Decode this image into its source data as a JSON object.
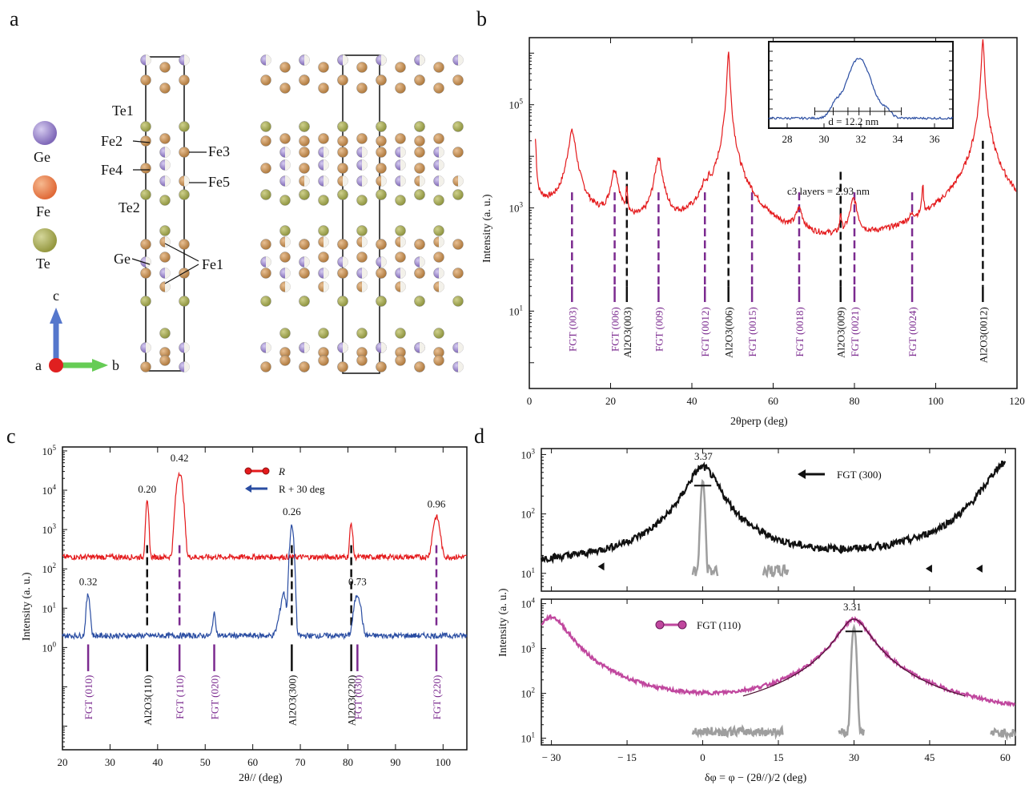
{
  "panel_letters": {
    "a": "a",
    "b": "b",
    "c": "c",
    "d": "d"
  },
  "panel_a": {
    "legend": [
      "Ge",
      "Fe",
      "Te"
    ],
    "legend_colors": {
      "Ge": "#8f79c8",
      "Fe": "#e9784a",
      "Te": "#a5a84e"
    },
    "site_labels": [
      "Te1",
      "Fe2",
      "Fe3",
      "Fe4",
      "Fe5",
      "Te2",
      "Ge",
      "Fe1"
    ],
    "axes": {
      "c": "c",
      "a": "a",
      "b": "b"
    }
  },
  "colors": {
    "red": "#e41a1c",
    "blue": "#2a4da2",
    "purple": "#7b2a8f",
    "black": "#111111",
    "grey": "#9e9e9e",
    "magenta": "#c0479e",
    "darkred": "#8b1010"
  },
  "chart_data": [
    {
      "id": "b",
      "type": "line",
      "xlabel": "2θperp (deg)",
      "ylabel": "Intensity (a. u.)",
      "xlim": [
        0,
        120
      ],
      "ylim_log10": [
        -0.5,
        6.3
      ],
      "yscale": "log",
      "xticks": [
        "0",
        "20",
        "40",
        "60",
        "80",
        "100",
        "120"
      ],
      "yticks": [
        "10^1",
        "10^3",
        "10^5"
      ],
      "peaks": [
        {
          "x": 1.5,
          "y": 20000
        },
        {
          "x": 10.5,
          "y": 30000
        },
        {
          "x": 21.0,
          "y": 5000
        },
        {
          "x": 24.0,
          "y": 2000
        },
        {
          "x": 31.8,
          "y": 9000
        },
        {
          "x": 43.1,
          "y": 1200
        },
        {
          "x": 44.2,
          "y": 1200
        },
        {
          "x": 49.0,
          "y": 1100000
        },
        {
          "x": 54.8,
          "y": 200
        },
        {
          "x": 66.4,
          "y": 600
        },
        {
          "x": 76.6,
          "y": 500
        },
        {
          "x": 79.8,
          "y": 1200
        },
        {
          "x": 94.2,
          "y": 140
        },
        {
          "x": 96.8,
          "y": 2200
        },
        {
          "x": 111.6,
          "y": 2000000
        }
      ],
      "annotation": "c3 layers = 2.93 nm",
      "reflections": [
        {
          "label": "FGT (003)",
          "x": 10.5,
          "kind": "FGT"
        },
        {
          "label": "FGT (006)",
          "x": 21.0,
          "kind": "FGT"
        },
        {
          "label": "Al2O3(003)",
          "x": 24.0,
          "kind": "Al"
        },
        {
          "label": "FGT (009)",
          "x": 31.8,
          "kind": "FGT"
        },
        {
          "label": "FGT (0012)",
          "x": 43.2,
          "kind": "FGT"
        },
        {
          "label": "Al2O3(006)",
          "x": 49.0,
          "kind": "Al"
        },
        {
          "label": "FGT (0015)",
          "x": 54.8,
          "kind": "FGT"
        },
        {
          "label": "FGT (0018)",
          "x": 66.4,
          "kind": "FGT"
        },
        {
          "label": "Al2O3(009)",
          "x": 76.6,
          "kind": "Al"
        },
        {
          "label": "FGT (0021)",
          "x": 80.0,
          "kind": "FGT"
        },
        {
          "label": "FGT (0024)",
          "x": 94.2,
          "kind": "FGT"
        },
        {
          "label": "Al2O3(0012)",
          "x": 111.6,
          "kind": "Al"
        }
      ],
      "inset": {
        "xlim": [
          27,
          37
        ],
        "xticks": [
          "28",
          "30",
          "32",
          "34",
          "36"
        ],
        "peak_center": 31.9,
        "label": "d = 12.2 nm"
      }
    },
    {
      "id": "c",
      "type": "line",
      "xlabel": "2θ// (deg)",
      "ylabel": "Intensity (a. u.)",
      "xlim": [
        20,
        105
      ],
      "yscale": "log",
      "xticks": [
        "20",
        "30",
        "40",
        "50",
        "60",
        "70",
        "80",
        "90",
        "100"
      ],
      "yticks": [
        "10^0",
        "10^1",
        "10^2",
        "10^3",
        "10^4",
        "10^5"
      ],
      "series": [
        {
          "name": "R",
          "baseline": 200,
          "peaks": [
            {
              "x": 37.8,
              "y": 4500,
              "w": 0.35
            },
            {
              "x": 44.6,
              "y": 28000,
              "w": 0.7
            },
            {
              "x": 80.7,
              "y": 1200,
              "w": 0.35
            },
            {
              "x": 98.6,
              "y": 1900,
              "w": 0.8
            }
          ]
        },
        {
          "name": "R + 30 deg",
          "baseline": 2,
          "peaks": [
            {
              "x": 25.4,
              "y": 20,
              "w": 0.45
            },
            {
              "x": 51.9,
              "y": 5,
              "w": 0.4
            },
            {
              "x": 66.5,
              "y": 15,
              "w": 0.5
            },
            {
              "x": 68.2,
              "y": 1200,
              "w": 0.45
            },
            {
              "x": 82.0,
              "y": 20,
              "w": 0.8
            }
          ]
        }
      ],
      "fwhm_labels": [
        {
          "text": "0.20",
          "x": 37.8,
          "y": 4500
        },
        {
          "text": "0.42",
          "x": 44.6,
          "y": 28000
        },
        {
          "text": "0.26",
          "x": 68.2,
          "y": 1200
        },
        {
          "text": "0.96",
          "x": 98.6,
          "y": 1900
        },
        {
          "text": "0.32",
          "x": 25.4,
          "y": 20
        },
        {
          "text": "0.73",
          "x": 82.0,
          "y": 20
        }
      ],
      "reflections": [
        {
          "label": "FGT (010)",
          "x": 25.4,
          "kind": "FGT"
        },
        {
          "label": "Al2O3(110)",
          "x": 37.8,
          "kind": "Al"
        },
        {
          "label": "FGT (110)",
          "x": 44.6,
          "kind": "FGT"
        },
        {
          "label": "FGT (020)",
          "x": 51.9,
          "kind": "FGT"
        },
        {
          "label": "Al2O3(300)",
          "x": 68.2,
          "kind": "Al"
        },
        {
          "label": "Al2O3(220)",
          "x": 80.7,
          "kind": "Al"
        },
        {
          "label": "FGT (030)",
          "x": 82.0,
          "kind": "FGT"
        },
        {
          "label": "FGT (220)",
          "x": 98.6,
          "kind": "FGT"
        }
      ]
    },
    {
      "id": "d",
      "type": "line",
      "xlabel": "δφ = φ − (2θ//)/2 (deg)",
      "ylabel": "Intensity (a. u.)",
      "xlim": [
        -32,
        62
      ],
      "yscale": "log",
      "xticks": [
        "− 30",
        "− 15",
        "0",
        "15",
        "30",
        "45",
        "60"
      ],
      "top": {
        "series_name": "FGT (300)",
        "yticks": [
          "10^1",
          "10^2",
          "10^3"
        ],
        "peaks": [
          {
            "x": 0,
            "y": 600,
            "w": 3.37
          },
          {
            "x": 60,
            "y": 700,
            "w": 4
          }
        ],
        "baseline": 12,
        "fwhm": "3.37"
      },
      "bottom": {
        "series_name": "FGT (110)",
        "yticks": [
          "10^1",
          "10^2",
          "10^3",
          "10^4"
        ],
        "peaks": [
          {
            "x": -30,
            "y": 5000,
            "w": 3.5
          },
          {
            "x": 30,
            "y": 4500,
            "w": 3.31
          }
        ],
        "baseline": 15,
        "fwhm": "3.31"
      }
    }
  ]
}
